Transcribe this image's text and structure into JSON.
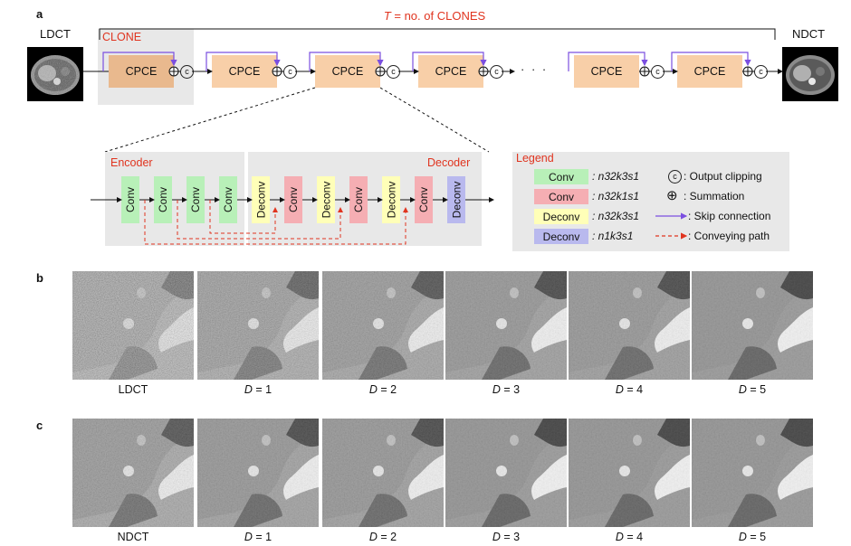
{
  "panel_a": {
    "label": "a",
    "input_label": "LDCT",
    "output_label": "NDCT",
    "t_label_pre": "T",
    "t_label_post": " = no. of  CLONES",
    "clone_label": "CLONE",
    "cpce_label": "CPCE",
    "ellipsis": "· · ·",
    "clip_glyph": "c",
    "encoder_label": "Encoder",
    "decoder_label": "Decoder",
    "layers": [
      "Conv",
      "Conv",
      "Conv",
      "Conv",
      "Deconv",
      "Conv",
      "Deconv",
      "Conv",
      "Deconv",
      "Conv",
      "Deconv"
    ],
    "legend": {
      "title": "Legend",
      "items": [
        {
          "swatch": "Conv",
          "spec": ": n32k3s1",
          "symbol": "c",
          "desc": ": Output clipping"
        },
        {
          "swatch": "Conv",
          "spec": ": n32k1s1",
          "symbol": "⊕",
          "desc": ": Summation"
        },
        {
          "swatch": "Deconv",
          "spec": ": n32k3s1",
          "symbol": "skip",
          "desc": ": Skip connection"
        },
        {
          "swatch": "Deconv",
          "spec": ": n1k3s1",
          "symbol": "convey",
          "desc": ": Conveying path"
        }
      ]
    },
    "colors": {
      "accent": "#e0341f",
      "skip": "#7b4fe0",
      "cpce": "#f8cfa8",
      "conv3": "#b8f0b8",
      "conv1": "#f5aeb3",
      "deconv32": "#ffffb8",
      "deconv1": "#b9b9ee"
    }
  },
  "panel_b": {
    "label": "b",
    "captions": [
      "LDCT",
      "D = 1",
      "D = 2",
      "D = 3",
      "D = 4",
      "D = 5"
    ]
  },
  "panel_c": {
    "label": "c",
    "captions": [
      "NDCT",
      "D = 1",
      "D = 2",
      "D = 3",
      "D = 4",
      "D = 5"
    ]
  }
}
